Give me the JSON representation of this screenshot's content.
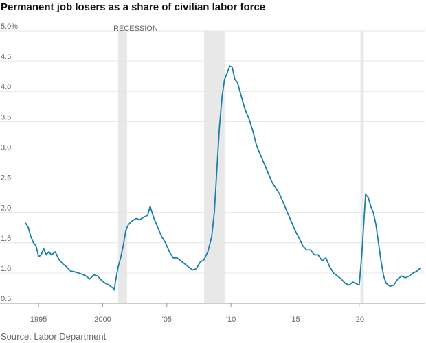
{
  "chart_data": {
    "type": "line",
    "title": "Permanent job losers as a share of civilian labor force",
    "source": "Source: Labor Department",
    "recession_label": "RECESSION",
    "ylim": [
      0.5,
      5.0
    ],
    "xlim": [
      1993.6,
      2025.1
    ],
    "y_ticks": [
      {
        "value": 5.0,
        "label": "5.0%"
      },
      {
        "value": 4.5,
        "label": "4.5"
      },
      {
        "value": 4.0,
        "label": "4.0"
      },
      {
        "value": 3.5,
        "label": "3.5"
      },
      {
        "value": 3.0,
        "label": "3.0"
      },
      {
        "value": 2.5,
        "label": "2.5"
      },
      {
        "value": 2.0,
        "label": "2.0"
      },
      {
        "value": 1.5,
        "label": "1.5"
      },
      {
        "value": 1.0,
        "label": "1.0"
      },
      {
        "value": 0.5,
        "label": "0.5"
      }
    ],
    "x_ticks": [
      {
        "value": 1995,
        "label": "1995"
      },
      {
        "value": 2000,
        "label": "2000"
      },
      {
        "value": 2005,
        "label": "'05"
      },
      {
        "value": 2010,
        "label": "'10"
      },
      {
        "value": 2015,
        "label": "'15"
      },
      {
        "value": 2020,
        "label": "'20"
      }
    ],
    "recessions": [
      {
        "start": 2001.2,
        "end": 2001.9
      },
      {
        "start": 2007.9,
        "end": 2009.5
      },
      {
        "start": 2020.1,
        "end": 2020.35
      }
    ],
    "series": [
      {
        "color": "#1a7fa8",
        "x": [
          1994.0,
          1994.2,
          1994.4,
          1994.6,
          1994.8,
          1995.0,
          1995.2,
          1995.4,
          1995.6,
          1995.8,
          1996.0,
          1996.3,
          1996.6,
          1996.9,
          1997.2,
          1997.5,
          1997.8,
          1998.1,
          1998.4,
          1998.7,
          1999.0,
          1999.3,
          1999.6,
          1999.9,
          2000.2,
          2000.5,
          2000.8,
          2000.9,
          2001.0,
          2001.2,
          2001.4,
          2001.6,
          2001.8,
          2002.0,
          2002.3,
          2002.6,
          2002.9,
          2003.2,
          2003.5,
          2003.7,
          2004.0,
          2004.3,
          2004.6,
          2004.9,
          2005.2,
          2005.5,
          2005.8,
          2006.1,
          2006.4,
          2006.7,
          2007.0,
          2007.3,
          2007.6,
          2007.9,
          2008.2,
          2008.5,
          2008.7,
          2008.9,
          2009.1,
          2009.3,
          2009.5,
          2009.7,
          2009.9,
          2010.1,
          2010.3,
          2010.5,
          2010.7,
          2010.9,
          2011.1,
          2011.4,
          2011.7,
          2012.0,
          2012.3,
          2012.6,
          2012.9,
          2013.2,
          2013.5,
          2013.8,
          2014.1,
          2014.4,
          2014.7,
          2015.0,
          2015.3,
          2015.6,
          2015.9,
          2016.2,
          2016.5,
          2016.8,
          2017.1,
          2017.4,
          2017.7,
          2018.0,
          2018.3,
          2018.6,
          2018.9,
          2019.2,
          2019.5,
          2019.8,
          2020.0,
          2020.2,
          2020.35,
          2020.5,
          2020.7,
          2020.9,
          2021.1,
          2021.3,
          2021.5,
          2021.7,
          2021.9,
          2022.1,
          2022.4,
          2022.7,
          2023.0,
          2023.3,
          2023.6,
          2023.9,
          2024.2,
          2024.5,
          2024.75
        ],
        "values": [
          1.82,
          1.75,
          1.6,
          1.5,
          1.45,
          1.27,
          1.3,
          1.4,
          1.3,
          1.35,
          1.3,
          1.35,
          1.22,
          1.15,
          1.1,
          1.03,
          1.02,
          1.0,
          0.98,
          0.95,
          0.9,
          0.97,
          0.95,
          0.88,
          0.83,
          0.8,
          0.75,
          0.72,
          0.86,
          1.1,
          1.25,
          1.45,
          1.7,
          1.8,
          1.86,
          1.9,
          1.88,
          1.92,
          1.95,
          2.1,
          1.9,
          1.75,
          1.6,
          1.5,
          1.35,
          1.25,
          1.25,
          1.2,
          1.15,
          1.1,
          1.05,
          1.07,
          1.18,
          1.22,
          1.35,
          1.6,
          2.0,
          2.7,
          3.4,
          3.9,
          4.2,
          4.3,
          4.42,
          4.4,
          4.2,
          4.15,
          4.0,
          3.85,
          3.7,
          3.55,
          3.35,
          3.1,
          2.95,
          2.8,
          2.65,
          2.5,
          2.4,
          2.3,
          2.15,
          2.0,
          1.85,
          1.7,
          1.58,
          1.45,
          1.38,
          1.38,
          1.3,
          1.3,
          1.2,
          1.25,
          1.1,
          1.0,
          0.95,
          0.9,
          0.83,
          0.8,
          0.85,
          0.82,
          0.8,
          1.3,
          1.8,
          2.3,
          2.25,
          2.1,
          2.0,
          1.8,
          1.5,
          1.2,
          0.95,
          0.83,
          0.78,
          0.8,
          0.9,
          0.95,
          0.92,
          0.95,
          1.0,
          1.03,
          1.08
        ]
      }
    ]
  }
}
